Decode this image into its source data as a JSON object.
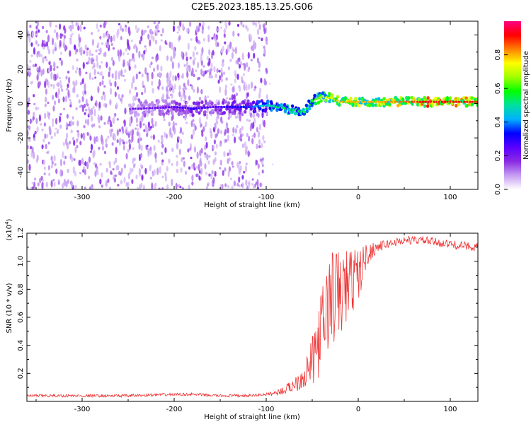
{
  "title": "C2E5.2023.185.13.25.G06",
  "chart_data": [
    {
      "type": "heatmap",
      "xlabel": "Height of straight line (km)",
      "ylabel": "Frequency (Hz)",
      "xlim": [
        -360,
        130
      ],
      "ylim": [
        -50,
        48
      ],
      "xticks": [
        -300,
        -200,
        -100,
        0,
        100
      ],
      "yticks": [
        -40,
        -20,
        0,
        20,
        40
      ],
      "colorbar": {
        "label": "Normalized spectral amplitude",
        "range": [
          0.0,
          1.0
        ],
        "ticks": [
          0.0,
          0.2,
          0.4,
          0.6,
          0.8
        ],
        "colormap": [
          "#ffffff",
          "#c59cf2",
          "#8a2be2",
          "#5a00ff",
          "#0000ff",
          "#00b0ff",
          "#00e0a0",
          "#00ff00",
          "#a0ff00",
          "#ffff00",
          "#ff8000",
          "#ff0000",
          "#ff0080"
        ]
      },
      "ridge": {
        "x": [
          -240,
          -200,
          -180,
          -160,
          -120,
          -100,
          -80,
          -60,
          -50,
          -40,
          -30,
          -20,
          0,
          20,
          50,
          80,
          100,
          130
        ],
        "frequency": [
          -3,
          -2,
          -3,
          -2,
          -2,
          -1,
          -3,
          -5,
          2,
          4,
          3,
          1,
          1,
          1,
          1,
          1,
          1,
          1
        ],
        "amplitude": [
          0.1,
          0.15,
          0.2,
          0.15,
          0.25,
          0.4,
          0.45,
          0.45,
          0.5,
          0.6,
          0.65,
          0.7,
          0.7,
          0.7,
          0.75,
          0.85,
          0.8,
          0.8
        ]
      }
    },
    {
      "type": "line",
      "xlabel": "Height of straight line (km)",
      "ylabel": "SNR (10 * v/v)",
      "scale_note": "(x10",
      "scale_exp": "4",
      "scale_close": ")",
      "color": "#ee3333",
      "xlim": [
        -360,
        130
      ],
      "ylim": [
        0,
        1.2
      ],
      "xticks": [
        -300,
        -200,
        -100,
        0,
        100
      ],
      "yticks": [
        0.2,
        0.4,
        0.6,
        0.8,
        1.0,
        1.2
      ],
      "x": [
        -360,
        -300,
        -250,
        -200,
        -180,
        -150,
        -120,
        -100,
        -90,
        -80,
        -70,
        -60,
        -50,
        -40,
        -30,
        -20,
        -10,
        0,
        10,
        20,
        30,
        50,
        70,
        100,
        130
      ],
      "y": [
        0.04,
        0.04,
        0.04,
        0.05,
        0.05,
        0.04,
        0.04,
        0.05,
        0.06,
        0.08,
        0.12,
        0.18,
        0.28,
        0.5,
        0.75,
        0.75,
        0.85,
        0.9,
        1.05,
        1.1,
        1.12,
        1.15,
        1.15,
        1.12,
        1.1
      ],
      "noise": [
        0.01,
        0.01,
        0.01,
        0.01,
        0.01,
        0.01,
        0.01,
        0.01,
        0.02,
        0.03,
        0.05,
        0.1,
        0.18,
        0.3,
        0.35,
        0.35,
        0.25,
        0.2,
        0.08,
        0.04,
        0.03,
        0.03,
        0.03,
        0.03,
        0.03
      ]
    }
  ]
}
